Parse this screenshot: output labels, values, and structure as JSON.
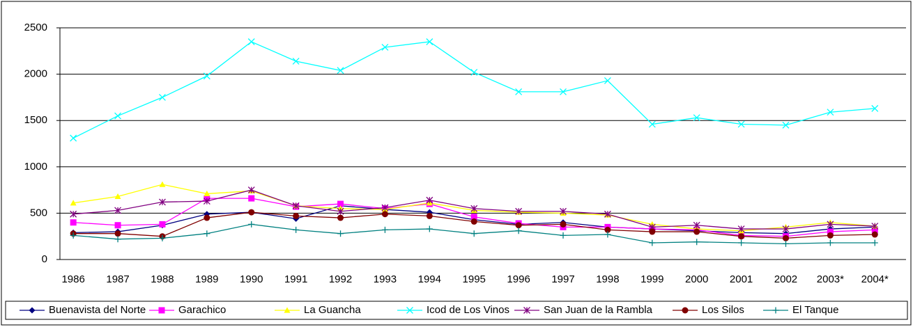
{
  "chart_data": {
    "type": "line",
    "categories": [
      "1986",
      "1987",
      "1988",
      "1989",
      "1990",
      "1991",
      "1992",
      "1993",
      "1994",
      "1995",
      "1996",
      "1997",
      "1998",
      "1999",
      "2000",
      "2001",
      "2002",
      "2003*",
      "2004*"
    ],
    "ylim": [
      0,
      2500
    ],
    "yticks": [
      0,
      500,
      1000,
      1500,
      2000,
      2500
    ],
    "grid": true,
    "legend": "bottom",
    "series": [
      {
        "name": "Buenavista del Norte",
        "color": "#000080",
        "marker": "diamond",
        "values": [
          290,
          300,
          370,
          490,
          510,
          440,
          580,
          540,
          510,
          430,
          380,
          400,
          350,
          330,
          310,
          290,
          280,
          330,
          350
        ]
      },
      {
        "name": "Garachico",
        "color": "#ff00ff",
        "marker": "square",
        "values": [
          400,
          370,
          380,
          660,
          660,
          570,
          600,
          550,
          600,
          460,
          390,
          350,
          350,
          330,
          320,
          260,
          250,
          300,
          320
        ]
      },
      {
        "name": "La Guancha",
        "color": "#ffff00",
        "marker": "triangle",
        "values": [
          610,
          680,
          810,
          710,
          740,
          580,
          550,
          540,
          610,
          530,
          510,
          500,
          480,
          380,
          330,
          310,
          350,
          400,
          360
        ]
      },
      {
        "name": "Icod de Los Vinos",
        "color": "#00ffff",
        "marker": "x",
        "values": [
          1310,
          1550,
          1750,
          1980,
          2350,
          2140,
          2040,
          2290,
          2350,
          2020,
          1810,
          1810,
          1930,
          1460,
          1530,
          1460,
          1450,
          1590,
          1630
        ]
      },
      {
        "name": "San Juan de la Rambla",
        "color": "#800080",
        "marker": "star",
        "values": [
          490,
          530,
          620,
          630,
          750,
          580,
          520,
          560,
          640,
          550,
          520,
          520,
          490,
          350,
          370,
          330,
          330,
          380,
          360
        ]
      },
      {
        "name": "Los Silos",
        "color": "#800000",
        "marker": "circle",
        "values": [
          280,
          280,
          250,
          450,
          510,
          470,
          450,
          490,
          470,
          410,
          370,
          380,
          320,
          300,
          300,
          250,
          230,
          260,
          270
        ]
      },
      {
        "name": "El Tanque",
        "color": "#008080",
        "marker": "plus",
        "values": [
          260,
          220,
          230,
          280,
          380,
          320,
          280,
          320,
          330,
          280,
          310,
          260,
          270,
          180,
          190,
          180,
          170,
          180,
          180
        ]
      }
    ]
  }
}
